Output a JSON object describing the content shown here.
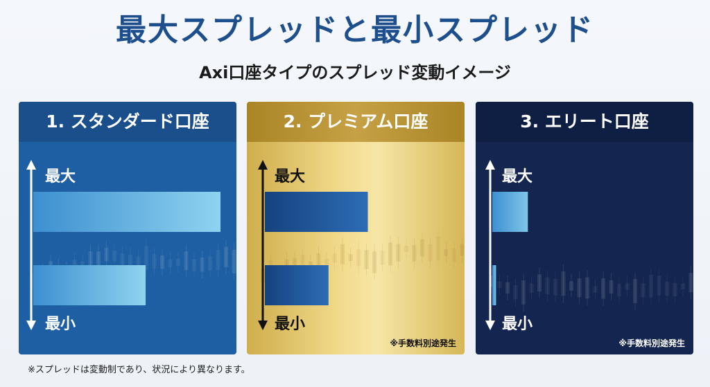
{
  "title": "最大スプレッドと最小スプレッド",
  "subtitle": "Axi口座タイプのスプレッド変動イメージ",
  "footnote": "※スプレッドは変動制であり、状況により異なります。",
  "colors": {
    "title": "#1d4f8c",
    "standard_panel": "#1d5fa2",
    "premium_panel": "#e8cf7e",
    "elite_panel": "#14254f"
  },
  "chart_data": [
    {
      "type": "bar",
      "title": "1. スタンダード口座",
      "axis": {
        "top_label": "最大",
        "bottom_label": "最小"
      },
      "categories": [
        "最大",
        "最小"
      ],
      "values": [
        1.0,
        0.6
      ],
      "note": "",
      "scale": "relative bar length, max = 1.0"
    },
    {
      "type": "bar",
      "title": "2. プレミアム口座",
      "axis": {
        "top_label": "最大",
        "bottom_label": "最小"
      },
      "categories": [
        "最大",
        "最小"
      ],
      "values": [
        0.55,
        0.34
      ],
      "note": "※手数料別途発生",
      "scale": "relative bar length, max = 1.0"
    },
    {
      "type": "bar",
      "title": "3. エリート口座",
      "axis": {
        "top_label": "最大",
        "bottom_label": "最小"
      },
      "categories": [
        "最大",
        "最小"
      ],
      "values": [
        0.19,
        0.02
      ],
      "note": "※手数料別途発生",
      "scale": "relative bar length, max = 1.0"
    }
  ]
}
